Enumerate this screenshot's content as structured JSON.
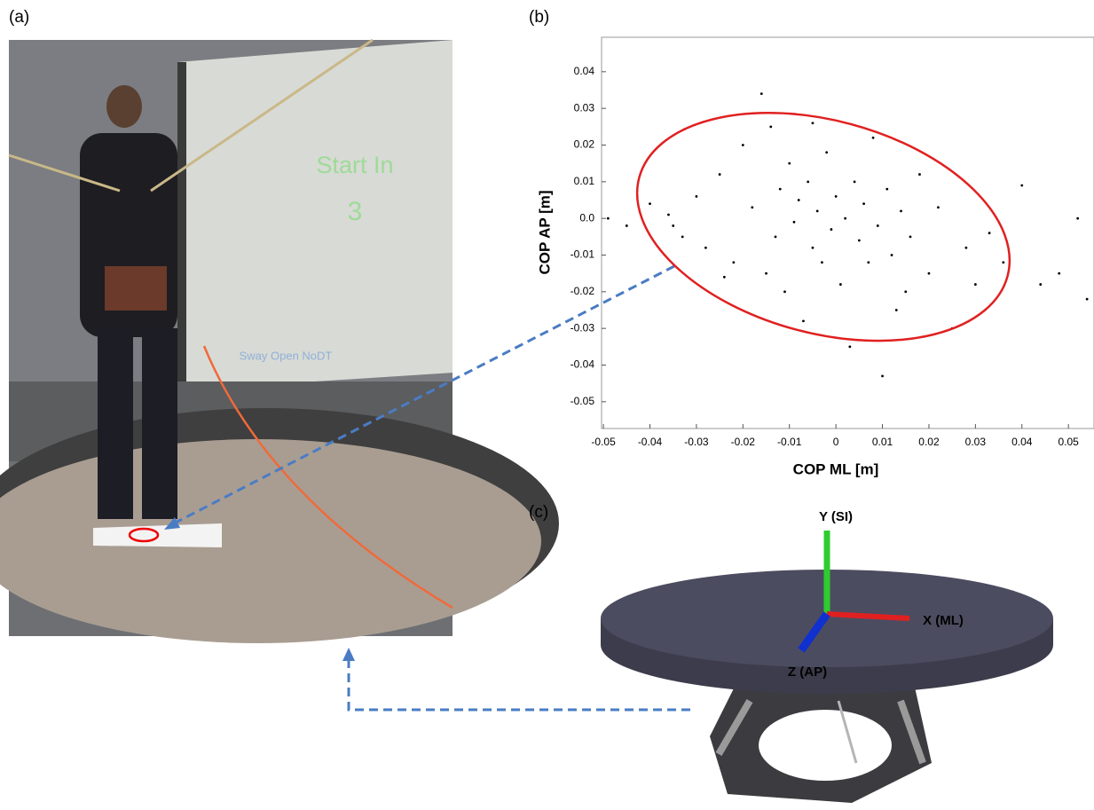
{
  "panels": [
    "(a)",
    "(b)",
    "(c)"
  ],
  "photo": {
    "screen_title": "Start In",
    "screen_count": "3",
    "screen_caption": "Sway Open NoDT"
  },
  "diagram": {
    "axes": [
      "Y (SI)",
      "X (ML)",
      "Z (AP)"
    ]
  },
  "chart_data": {
    "type": "scatter",
    "x_label": "COP ML [m]",
    "y_label": "COP  AP [m]",
    "xlim": [
      -0.0504,
      0.0555
    ],
    "ylim": [
      -0.0573,
      0.0494
    ],
    "xticks": [
      -0.05,
      -0.04,
      -0.03,
      -0.02,
      -0.01,
      0,
      0.01,
      0.02,
      0.03,
      0.04,
      0.05
    ],
    "yticks": [
      0.04,
      0.03,
      0.02,
      0.01,
      {
        "value": 0,
        "label": "0.0"
      },
      -0.01,
      -0.02,
      -0.03,
      -0.04,
      -0.05
    ],
    "color": "#000000",
    "x": [
      -0.049,
      -0.045,
      -0.04,
      -0.036,
      -0.033,
      -0.03,
      -0.028,
      -0.025,
      -0.022,
      -0.02,
      -0.018,
      -0.016,
      -0.015,
      -0.014,
      -0.013,
      -0.012,
      -0.011,
      -0.01,
      -0.009,
      -0.008,
      -0.007,
      -0.006,
      -0.005,
      -0.004,
      -0.003,
      -0.002,
      -0.001,
      0,
      0.001,
      0.002,
      0.003,
      0.004,
      0.005,
      0.006,
      0.007,
      0.008,
      0.009,
      0.01,
      0.011,
      0.012,
      0.013,
      0.014,
      0.016,
      0.018,
      0.02,
      0.022,
      0.025,
      0.028,
      0.03,
      0.033,
      0.036,
      0.04,
      0.044,
      0.048,
      0.052,
      0.054,
      -0.035,
      -0.005,
      0.015,
      -0.024
    ],
    "values": [
      0,
      -0.002,
      0.004,
      0.001,
      -0.005,
      0.006,
      -0.008,
      0.012,
      -0.012,
      0.02,
      0.003,
      0.034,
      -0.015,
      0.025,
      -0.005,
      0.008,
      -0.02,
      0.015,
      -0.001,
      0.005,
      -0.028,
      0.01,
      -0.008,
      0.002,
      -0.012,
      0.018,
      -0.003,
      0.006,
      -0.018,
      0,
      -0.035,
      0.01,
      -0.006,
      0.004,
      -0.012,
      0.022,
      -0.002,
      -0.043,
      0.008,
      -0.01,
      -0.025,
      0.002,
      -0.005,
      0.012,
      -0.015,
      0.003,
      -0.03,
      -0.008,
      -0.018,
      -0.004,
      -0.012,
      0.009,
      -0.018,
      -0.015,
      0,
      -0.022,
      -0.002,
      0.026,
      -0.02,
      -0.016
    ],
    "ellipse": {
      "cx": -0.0027,
      "cy": -0.0023,
      "rx": 0.041,
      "ry": 0.029,
      "angle": -15,
      "color": "#e02020"
    }
  }
}
